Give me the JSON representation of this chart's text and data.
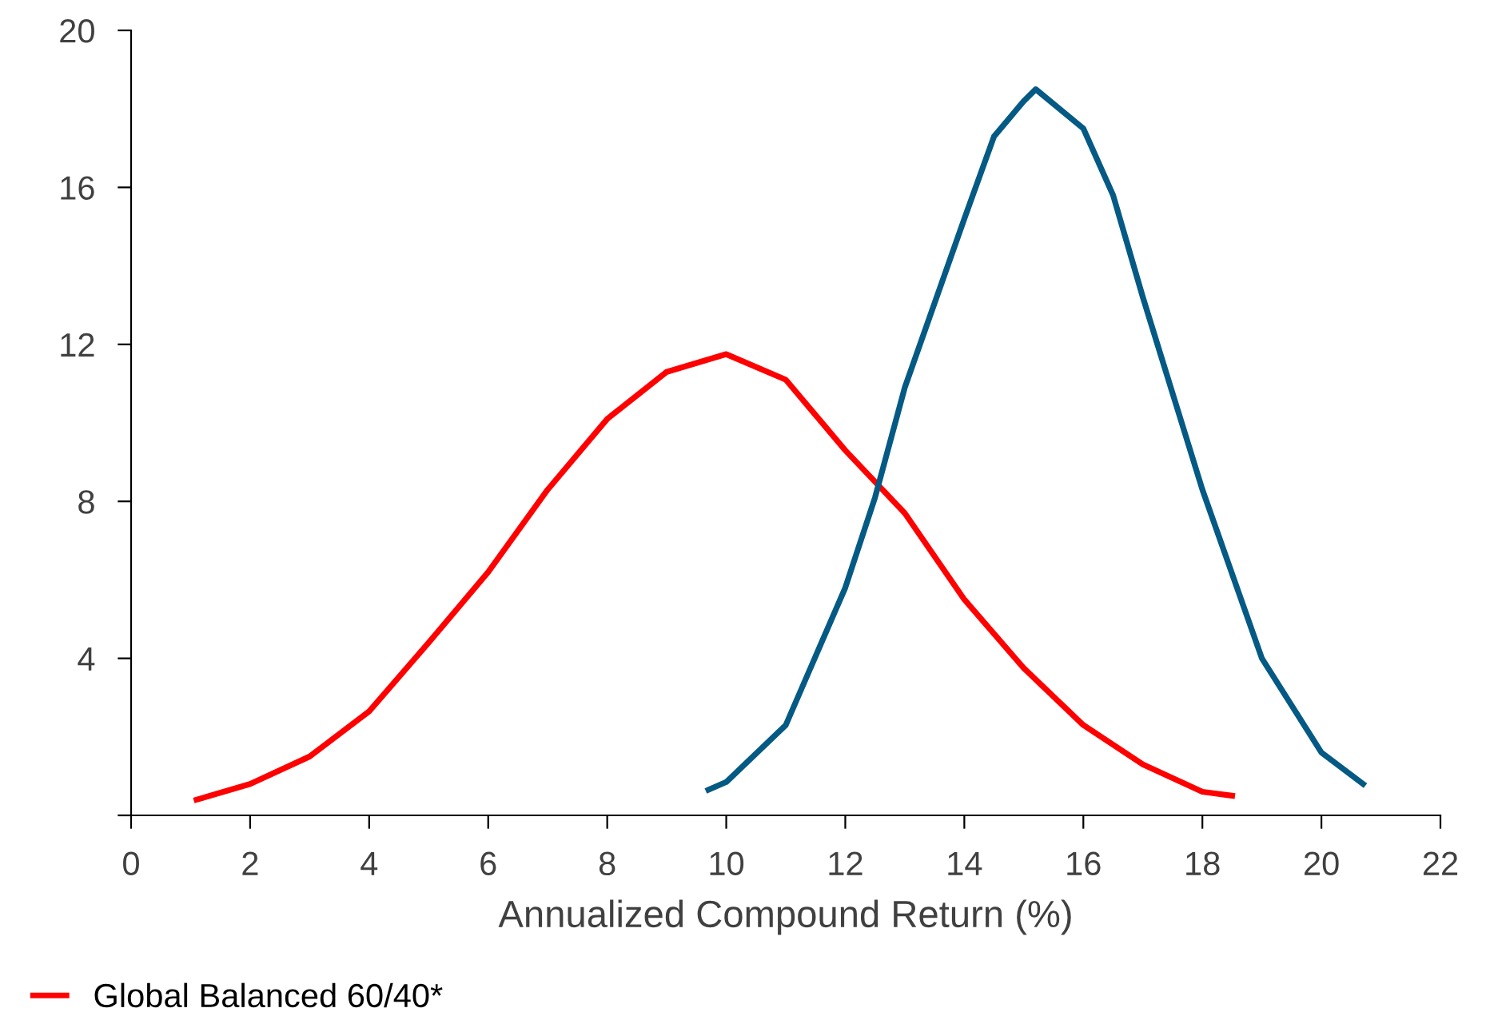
{
  "chart_data": {
    "type": "line",
    "xlabel": "Annualized Compound Return (%)",
    "xlim": [
      0,
      22
    ],
    "xticks": [
      0,
      2,
      4,
      6,
      8,
      10,
      12,
      14,
      16,
      18,
      20,
      22
    ],
    "ylim": [
      0,
      20
    ],
    "yticks": [
      {
        "value": 0,
        "label": null
      },
      4,
      8,
      12,
      16,
      20
    ],
    "grid": false,
    "legend": "bottom left",
    "marker": "none",
    "line_style": "solid",
    "series": [
      {
        "name": "Global Balanced 60/40*",
        "color": "#ff0000",
        "x": [
          1.1,
          2,
          3,
          4,
          5,
          6,
          7,
          8,
          9,
          10,
          11,
          12,
          13,
          14,
          15,
          16,
          17,
          18,
          18.5
        ],
        "values": [
          0.4,
          0.8,
          1.5,
          2.65,
          4.4,
          6.2,
          8.3,
          10.1,
          11.3,
          11.75,
          11.1,
          9.3,
          7.7,
          5.5,
          3.75,
          2.3,
          1.3,
          0.6,
          0.5
        ]
      },
      {
        "color": "#045a84",
        "x": [
          9.7,
          10,
          11,
          12,
          12.5,
          13,
          14,
          14.5,
          15,
          15.2,
          16,
          16.5,
          17,
          18,
          19,
          20,
          20.7
        ],
        "values": [
          0.65,
          0.85,
          2.3,
          5.8,
          8.1,
          10.9,
          15.2,
          17.3,
          18.2,
          18.5,
          17.5,
          15.8,
          13.2,
          8.3,
          4.0,
          1.6,
          0.8
        ]
      }
    ]
  }
}
